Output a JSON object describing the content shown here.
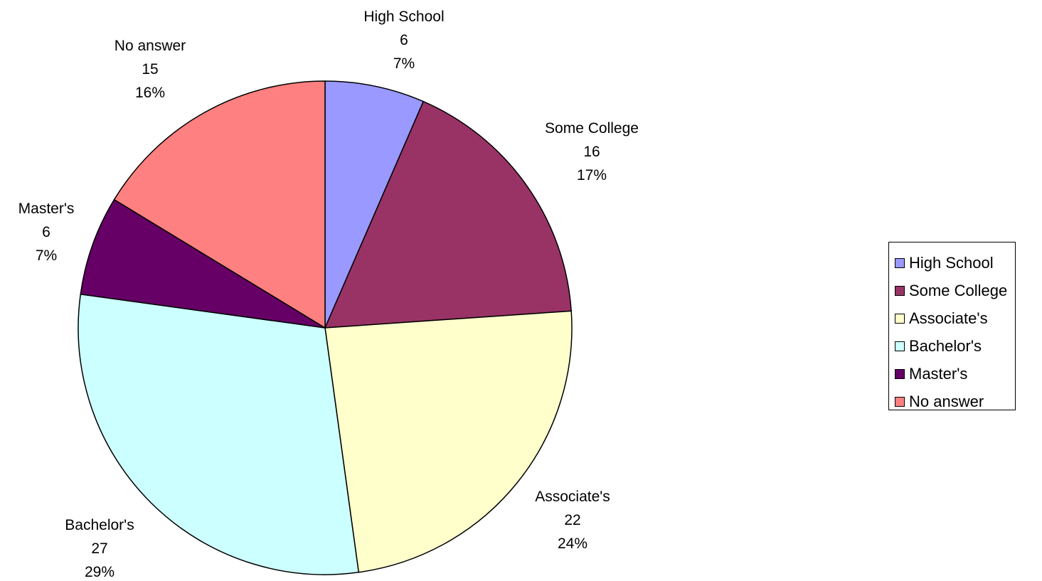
{
  "chart_data": {
    "type": "pie",
    "title": "",
    "slices": [
      {
        "label": "High School",
        "value": 6,
        "percent": "7%",
        "color": "#9999ff"
      },
      {
        "label": "Some College",
        "value": 16,
        "percent": "17%",
        "color": "#993366"
      },
      {
        "label": "Associate's",
        "value": 22,
        "percent": "24%",
        "color": "#ffffcc"
      },
      {
        "label": "Bachelor's",
        "value": 27,
        "percent": "29%",
        "color": "#ccffff"
      },
      {
        "label": "Master's",
        "value": 6,
        "percent": "7%",
        "color": "#660066"
      },
      {
        "label": "No answer",
        "value": 15,
        "percent": "16%",
        "color": "#ff8080"
      }
    ],
    "legend": {
      "placement": "right",
      "items": [
        {
          "label": "High School",
          "color": "#9999ff"
        },
        {
          "label": "Some College",
          "color": "#993366"
        },
        {
          "label": "Associate's",
          "color": "#ffffcc"
        },
        {
          "label": "Bachelor's",
          "color": "#ccffff"
        },
        {
          "label": "Master's",
          "color": "#660066"
        },
        {
          "label": "No answer",
          "color": "#ff8080"
        }
      ]
    }
  }
}
